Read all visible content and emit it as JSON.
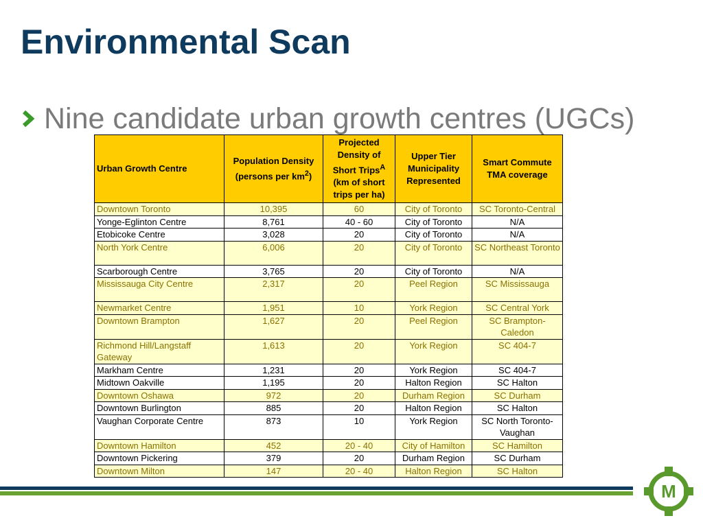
{
  "slide": {
    "title": "Environmental Scan",
    "bullet": "Nine candidate urban growth centres (UGCs)"
  },
  "table": {
    "headers": {
      "ugc": "Urban Growth Centre",
      "pop_main": "Population Density (persons per km",
      "pop_sup": "2",
      "pop_end": ")",
      "proj_main": "Projected Density of Short Trips",
      "proj_sup": "A",
      "proj_end": " (km of short trips per ha)",
      "tier": "Upper Tier Municipality Represented",
      "tma": "Smart Commute TMA coverage"
    },
    "rows": [
      {
        "name": "Downtown Toronto",
        "pop": "10,395",
        "proj": "60",
        "tier": "City of Toronto",
        "tma": "SC Toronto-Central"
      },
      {
        "name": "Yonge-Eglinton Centre",
        "pop": "8,761",
        "proj": "40 - 60",
        "tier": "City of Toronto",
        "tma": "N/A"
      },
      {
        "name": "Etobicoke Centre",
        "pop": "3,028",
        "proj": "20",
        "tier": "City of Toronto",
        "tma": "N/A"
      },
      {
        "name": "North York Centre",
        "pop": "6,006",
        "proj": "20",
        "tier": "City of Toronto",
        "tma": "SC Northeast Toronto"
      },
      {
        "name": "Scarborough Centre",
        "pop": "3,765",
        "proj": "20",
        "tier": "City of Toronto",
        "tma": "N/A"
      },
      {
        "name": "Mississauga City Centre",
        "pop": "2,317",
        "proj": "20",
        "tier": "Peel Region",
        "tma": "SC Mississauga"
      },
      {
        "name": "Newmarket Centre",
        "pop": "1,951",
        "proj": "10",
        "tier": "York Region",
        "tma": "SC Central York"
      },
      {
        "name": "Downtown Brampton",
        "pop": "1,627",
        "proj": "20",
        "tier": "Peel Region",
        "tma": "SC Brampton-Caledon"
      },
      {
        "name": "Richmond Hill/Langstaff Gateway",
        "pop": "1,613",
        "proj": "20",
        "tier": "York Region",
        "tma": "SC 404-7"
      },
      {
        "name": "Markham Centre",
        "pop": "1,231",
        "proj": "20",
        "tier": "York Region",
        "tma": "SC 404-7"
      },
      {
        "name": "Midtown Oakville",
        "pop": "1,195",
        "proj": "20",
        "tier": "Halton Region",
        "tma": "SC Halton"
      },
      {
        "name": "Downtown Oshawa",
        "pop": "972",
        "proj": "20",
        "tier": "Durham Region",
        "tma": "SC Durham"
      },
      {
        "name": "Downtown Burlington",
        "pop": "885",
        "proj": "20",
        "tier": "Halton Region",
        "tma": "SC Halton"
      },
      {
        "name": "Vaughan Corporate Centre",
        "pop": "873",
        "proj": "10",
        "tier": "York Region",
        "tma": "SC North Toronto-Vaughan"
      },
      {
        "name": "Downtown Hamilton",
        "pop": "452",
        "proj": "20 - 40",
        "tier": "City of Hamilton",
        "tma": "SC Hamilton"
      },
      {
        "name": "Downtown Pickering",
        "pop": "379",
        "proj": "20",
        "tier": "Durham Region",
        "tma": "SC Durham"
      },
      {
        "name": "Downtown Milton",
        "pop": "147",
        "proj": "20 - 40",
        "tier": "Halton Region",
        "tma": "SC Halton"
      }
    ]
  },
  "logo": {
    "letter": "M",
    "icon": "metrolinx-logo"
  },
  "colors": {
    "title": "#0e3a5e",
    "header_fill": "#ffcc00",
    "highlight_fill": "#ffffcc",
    "highlight_text": "#8a7000",
    "stripe_blue": "#0e3a5e",
    "stripe_green": "#6aa232"
  }
}
